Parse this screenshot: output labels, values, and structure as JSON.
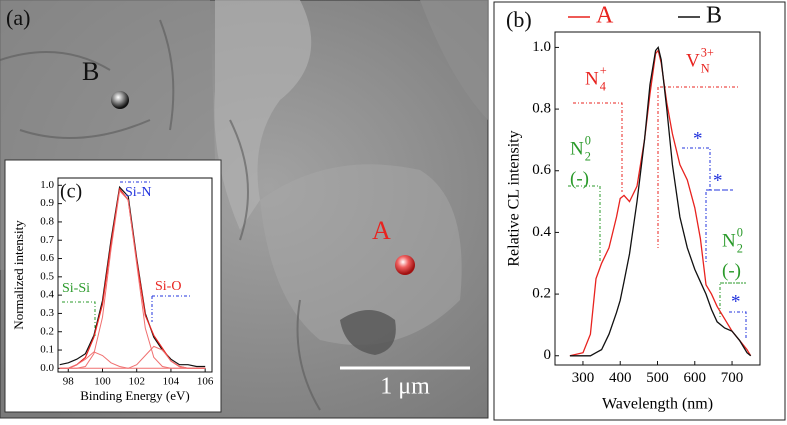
{
  "panel_a": {
    "label": "(a)",
    "points": [
      {
        "label": "B",
        "color": "#111111"
      },
      {
        "label": "A",
        "color": "#e8231f"
      }
    ],
    "scale_bar": "1 μm"
  },
  "chart_data": [
    {
      "type": "line",
      "panel_label": "(b)",
      "x_label": "Wavelength (nm)",
      "y_label": "Relative CL intensity",
      "legend": "top",
      "x": [
        265,
        300,
        320,
        335,
        350,
        370,
        390,
        400,
        410,
        425,
        445,
        465,
        480,
        495,
        502,
        510,
        525,
        540,
        560,
        580,
        600,
        615,
        630,
        645,
        660,
        680,
        700,
        720,
        740,
        750
      ],
      "series": [
        {
          "name": "A",
          "color": "#e8231f",
          "values": [
            0.0,
            0.01,
            0.07,
            0.25,
            0.3,
            0.35,
            0.45,
            0.51,
            0.52,
            0.5,
            0.55,
            0.7,
            0.85,
            0.98,
            0.99,
            0.95,
            0.82,
            0.72,
            0.62,
            0.57,
            0.48,
            0.38,
            0.23,
            0.2,
            0.16,
            0.12,
            0.08,
            0.05,
            0.02,
            0.0
          ]
        },
        {
          "name": "B",
          "color": "#111111",
          "values": [
            0.0,
            0.0,
            0.0,
            0.01,
            0.02,
            0.07,
            0.14,
            0.18,
            0.24,
            0.33,
            0.5,
            0.7,
            0.88,
            0.99,
            1.0,
            0.96,
            0.8,
            0.62,
            0.45,
            0.35,
            0.28,
            0.24,
            0.2,
            0.15,
            0.11,
            0.09,
            0.08,
            0.05,
            0.01,
            0.0
          ]
        }
      ],
      "xlim": [
        225,
        775
      ],
      "xticks": [
        300,
        400,
        500,
        600,
        700
      ],
      "ylim": [
        -0.03,
        1.05
      ],
      "yticks": [
        0,
        0.2,
        0.4,
        0.6,
        0.8,
        {
          "value": 1,
          "label": "1.0"
        }
      ],
      "annotations": [
        {
          "text": "N",
          "sub": "4",
          "sup": "+",
          "color": "#e8231f"
        },
        {
          "text": "V",
          "sub": "N",
          "sup": "3+",
          "color": "#e8231f"
        },
        {
          "text": "N",
          "sub": "2",
          "sup": "0",
          "color": "#2a9a2a"
        },
        {
          "text": "(-)",
          "color": "#2a9a2a"
        },
        {
          "text": "*",
          "color": "#2233dd"
        },
        {
          "text": "*",
          "color": "#2233dd"
        },
        {
          "text": "N",
          "sub": "2",
          "sup": "0",
          "color": "#2a9a2a"
        },
        {
          "text": "(-)",
          "color": "#2a9a2a"
        },
        {
          "text": "*",
          "color": "#2233dd"
        }
      ]
    },
    {
      "type": "line",
      "panel_label": "(c)",
      "x_label": "Binding Energy (eV)",
      "y_label": "Normalized intensity",
      "x": [
        97.5,
        98,
        98.5,
        99,
        99.5,
        100,
        100.5,
        101,
        101.5,
        102,
        102.5,
        103,
        103.5,
        104,
        104.5,
        105,
        105.5,
        106
      ],
      "series": [
        {
          "color": "#111111",
          "values": [
            0.02,
            0.03,
            0.05,
            0.08,
            0.18,
            0.37,
            0.7,
            0.99,
            0.94,
            0.6,
            0.3,
            0.17,
            0.1,
            0.05,
            0.02,
            0.02,
            0.01,
            0.01
          ]
        },
        {
          "color": "#e8231f",
          "values": [
            0,
            0,
            0.02,
            0.06,
            0.17,
            0.35,
            0.68,
            0.98,
            0.92,
            0.59,
            0.29,
            0.18,
            0.11,
            0.04,
            0.01,
            0,
            0,
            0
          ]
        },
        {
          "color": "#f07070",
          "values": [
            0,
            0,
            0,
            0.01,
            0.08,
            0.28,
            0.65,
            0.97,
            0.92,
            0.57,
            0.22,
            0.06,
            0.01,
            0,
            0,
            0,
            0,
            0
          ]
        },
        {
          "color": "#f07070",
          "values": [
            0,
            0,
            0.02,
            0.05,
            0.09,
            0.07,
            0.03,
            0.01,
            0,
            0,
            0,
            0,
            0,
            0,
            0,
            0,
            0,
            0
          ]
        },
        {
          "color": "#f07070",
          "values": [
            0,
            0,
            0,
            0,
            0,
            0,
            0,
            0,
            0,
            0.02,
            0.07,
            0.12,
            0.1,
            0.04,
            0.01,
            0,
            0,
            0
          ]
        }
      ],
      "xlim": [
        97.4,
        106.4
      ],
      "xticks": [
        98,
        100,
        102,
        104,
        106
      ],
      "ylim": [
        -0.02,
        1.04
      ],
      "yticks": [
        {
          "value": 0,
          "label": "0.0"
        },
        0.1,
        0.2,
        0.3,
        0.4,
        0.5,
        0.6,
        0.7,
        0.8,
        0.9,
        {
          "value": 1,
          "label": "1.0"
        }
      ],
      "annotations": [
        {
          "text": "Si-N",
          "color": "#2233dd"
        },
        {
          "text": "Si-Si",
          "color": "#2a9a2a"
        },
        {
          "text": "Si-O",
          "color": "#e8231f"
        }
      ]
    }
  ]
}
